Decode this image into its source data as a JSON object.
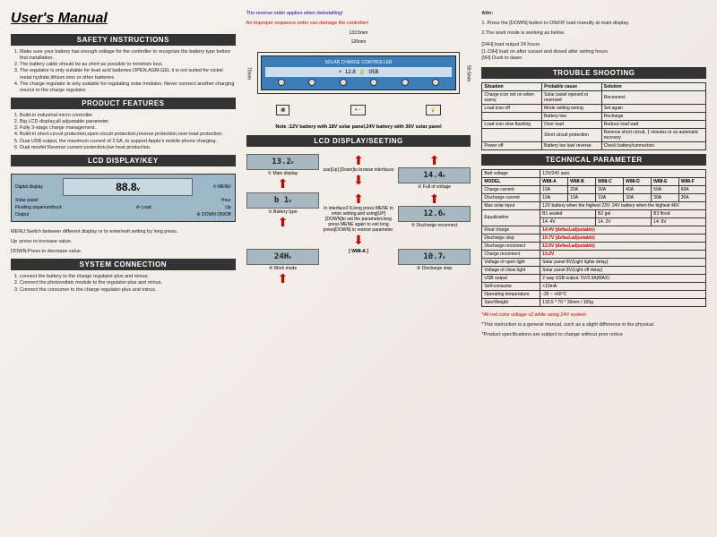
{
  "title": "User's Manual",
  "col1": {
    "safety_header": "SAFETY INSTRUCTIONS",
    "safety": [
      "Make sure your battery has enough voltage for the controller to recognize the battery type before first installation.",
      "The battery cable should be as short as possible to minimize loss.",
      "The regulator is only suitable for lead acid batteries:OPEN,AGM,GEL it is not suited for nickel metal hydride,lithium ions or other batteries.",
      "The charge regulator is only suitable for regulating solar modules. Never connect another charging source to the charge regulator."
    ],
    "features_header": "PRODUCT FEATURES",
    "features": [
      "Build-in industrial micro controller.",
      "Big LCD display,all adjustable parameter.",
      "Fully 3-stage charge management.",
      "Build-in short-circuit protection,open-circuit protection,reverse protection,over-load protection.",
      "Dual USB output, the maximum current of 2.5A, to support Apple's mobile phone charging.",
      "Dual mosfet Reverse current protection,low heat production."
    ],
    "lcdkey_header": "LCD DISPLAY/KEY",
    "lcd_value": "88.8",
    "lcd_labels": {
      "digital": "Digital display",
      "solar": "Solar panel",
      "float": "Floating aquarium/buck",
      "menu": "MENU",
      "hour": "Hour",
      "load": "Load",
      "up": "Up",
      "down": "DOWN ON/Off",
      "output": "Output"
    },
    "menu_text": "MENU:Switch between different display or to enter/exit setting by long press.",
    "up_text": "Up    :press to increase value.",
    "down_text": "DOWN:Press to decrease value.",
    "system_header": "SYSTEM CONNECTION",
    "system": [
      "connect the battery to the charge regulator-plus and minus.",
      "Connect the photovoltaic module to the regulator-plus and minus.",
      "Connect the consumer to the charge regulator-plus and minus."
    ]
  },
  "col2": {
    "reverse_warn1": "The reverse order applies when deinstalling!",
    "reverse_warn2": "An improper sequence order can damage the controller!",
    "dim_w1": "133.5mm",
    "dim_w2": "126mm",
    "dim_h1": "70mm",
    "dim_h2": "59.5mm",
    "controller_title": "SOLAR CHARGE CONTROLLER",
    "controller_display": "12.8",
    "note": "Note :12V battery with 18V solar panel,24V battery with 36V solar panel",
    "lcd_section_header": "LCD DISPLAY/SEETING",
    "lcds": [
      {
        "val": "13.2",
        "cap": "① Main display"
      },
      {
        "val": "",
        "cap": "use[Up] [Down]to browse interfaces"
      },
      {
        "val": "14.4",
        "cap": "② Full of voltage"
      },
      {
        "val": "b 1",
        "cap": "③ Battery type"
      },
      {
        "val": "",
        "cap": "In interface2-5,long press MENE to enter setting,and using[UP] [DOWN]to set the parameter,long press MENE again to exit long press[DOWN] to restore parameter."
      },
      {
        "val": "12.6",
        "cap": "⑤ Discharge reconnect"
      },
      {
        "val": "24H",
        "cap": "④ Work mode"
      },
      {
        "val": "[ W88-A ]",
        "cap": ""
      },
      {
        "val": "10.7",
        "cap": "⑥ Discharge stop"
      }
    ]
  },
  "col3": {
    "attn_header": "Attn:",
    "attn1": "1. Press the [DOWN] button to ON/OF load manully at main display.",
    "attn2": "2.The work mode is working as below.",
    "modes": [
      "[24H]   load output 24 hours",
      "[1-23H] load on after sunset and dosed after setting hours",
      "[0H]    Dusk to dawn"
    ],
    "trouble_header": "TROUBLE SHOOTING",
    "trouble_cols": [
      "Situation",
      "Probable cause",
      "Solution"
    ],
    "trouble_rows": [
      [
        "Charge icon not on when sunny",
        "Solar panel opened or reversed",
        "Reconnect"
      ],
      [
        "Load icon off",
        "Mode setting wrong",
        "Set again"
      ],
      [
        "",
        "Battery low",
        "Recharge"
      ],
      [
        "Load icon slow flashing",
        "Over load",
        "Reduce load watt"
      ],
      [
        "",
        "Short circuit protection",
        "Remove short circuit, 1 minutes or so automatic recovery"
      ],
      [
        "Power off",
        "Battery too low/ reverse",
        "Check battery/connection"
      ]
    ],
    "tech_header": "TECHNICAL PARAMETER",
    "batt_voltage": {
      "label": "Batt voltage",
      "value": "12V/24V  auto"
    },
    "model_row": [
      "MODEL",
      "W88-A",
      "W88-B",
      "W88-C",
      "W88-D",
      "W88-E",
      "W88-F"
    ],
    "charge_row": [
      "Charge current",
      "10A",
      "20A",
      "30A",
      "40A",
      "50A",
      "60A"
    ],
    "discharge_row": [
      "Discharge current",
      "10A",
      "10A",
      "10A",
      "30A",
      "30A",
      "30A"
    ],
    "max_input": {
      "label": "Max solar input",
      "value": "12V battery when the highest 23V; 24V battery when the highest 46V"
    },
    "eq_row": [
      "Equalization",
      "B1 sealed",
      "B2 gel",
      "B3 flood"
    ],
    "eq_vals": [
      "",
      "14. 4V",
      "14. 2V",
      "14. 6V"
    ],
    "params": [
      {
        "label": "Float charge",
        "value": "14.4V (defaul,adjustable)",
        "red": true
      },
      {
        "label": "Discharge stop",
        "value": "10.7V (defaul,adjustable)",
        "red": true
      },
      {
        "label": "Discharge reconnect",
        "value": "12.6V (defaul,adjustable)",
        "red": true
      },
      {
        "label": "Charge reconnect",
        "value": "13.2V",
        "red": true
      },
      {
        "label": "Voltage of open light",
        "value": "Solar panel 8V(Light lights delay)"
      },
      {
        "label": "Voltage of close light",
        "value": "Solar panel 8V(Light off delay)"
      },
      {
        "label": "USB output",
        "value": "2 way USB output.  5V/2.5A(MAX)"
      },
      {
        "label": "Self-consume",
        "value": "<10mA"
      },
      {
        "label": "Operating temperature",
        "value": "-35 ~ +60°C"
      },
      {
        "label": "Size/Weight",
        "value": "133.5 * 70 * 35mm  /  165g"
      }
    ],
    "footnotes": [
      "*All red color voltage x2 while using 24V system",
      "*This instruction is a general manual, such as a slight difference in the physical.",
      "*Product specifications are subject to change without prior notice"
    ]
  }
}
